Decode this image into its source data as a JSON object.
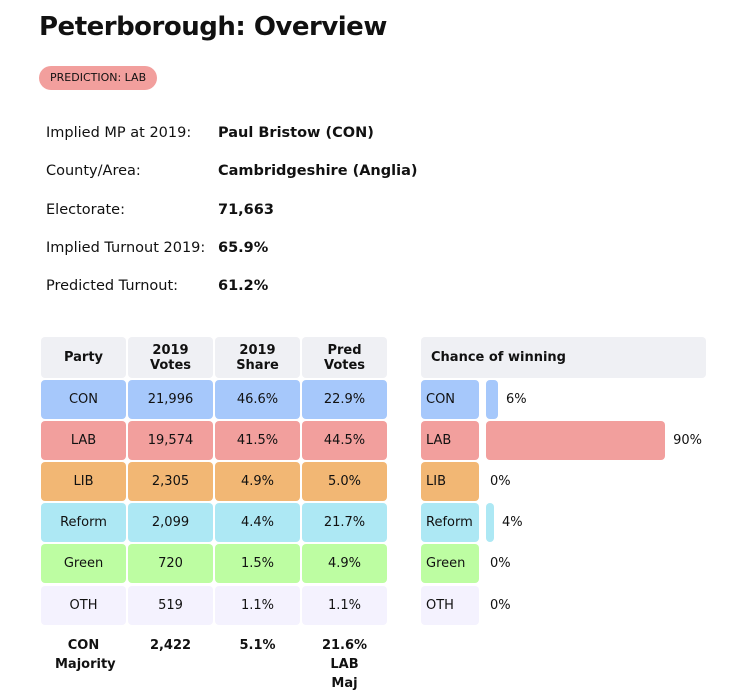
{
  "title": "Peterborough: Overview",
  "prediction_badge": "PREDICTION: LAB",
  "info": [
    {
      "label": "Implied MP at 2019:",
      "value": "Paul Bristow  (CON)"
    },
    {
      "label": "County/Area:",
      "value": "Cambridgeshire (Anglia)"
    },
    {
      "label": "Electorate:",
      "value": "71,663"
    },
    {
      "label": "Implied Turnout 2019:",
      "value": "65.9%"
    },
    {
      "label": "Predicted Turnout:",
      "value": "61.2%"
    }
  ],
  "table": {
    "headers": [
      "Party",
      "2019 Votes",
      "2019 Share",
      "Pred Votes"
    ],
    "rows": [
      {
        "party": "CON",
        "votes": "21,996",
        "share": "46.6%",
        "pred": "22.9%",
        "color": "#a6c8fb"
      },
      {
        "party": "LAB",
        "votes": "19,574",
        "share": "41.5%",
        "pred": "44.5%",
        "color": "#f29f9d"
      },
      {
        "party": "LIB",
        "votes": "2,305",
        "share": "4.9%",
        "pred": "5.0%",
        "color": "#f2b774"
      },
      {
        "party": "Reform",
        "votes": "2,099",
        "share": "4.4%",
        "pred": "21.7%",
        "color": "#ade8f4"
      },
      {
        "party": "Green",
        "votes": "720",
        "share": "1.5%",
        "pred": "4.9%",
        "color": "#bdfda2"
      },
      {
        "party": "OTH",
        "votes": "519",
        "share": "1.1%",
        "pred": "1.1%",
        "color": "#f4f2fe"
      }
    ],
    "footer": [
      "CON Majority",
      "2,422",
      "5.1%",
      "21.6% LAB Maj"
    ]
  },
  "chance": {
    "header": "Chance of winning",
    "rows": [
      {
        "party": "CON",
        "pct": 6,
        "label": "6%"
      },
      {
        "party": "LAB",
        "pct": 90,
        "label": "90%"
      },
      {
        "party": "LIB",
        "pct": 0,
        "label": "0%"
      },
      {
        "party": "Reform",
        "pct": 4,
        "label": "4%"
      },
      {
        "party": "Green",
        "pct": 0,
        "label": "0%"
      },
      {
        "party": "OTH",
        "pct": 0,
        "label": "0%"
      }
    ]
  }
}
